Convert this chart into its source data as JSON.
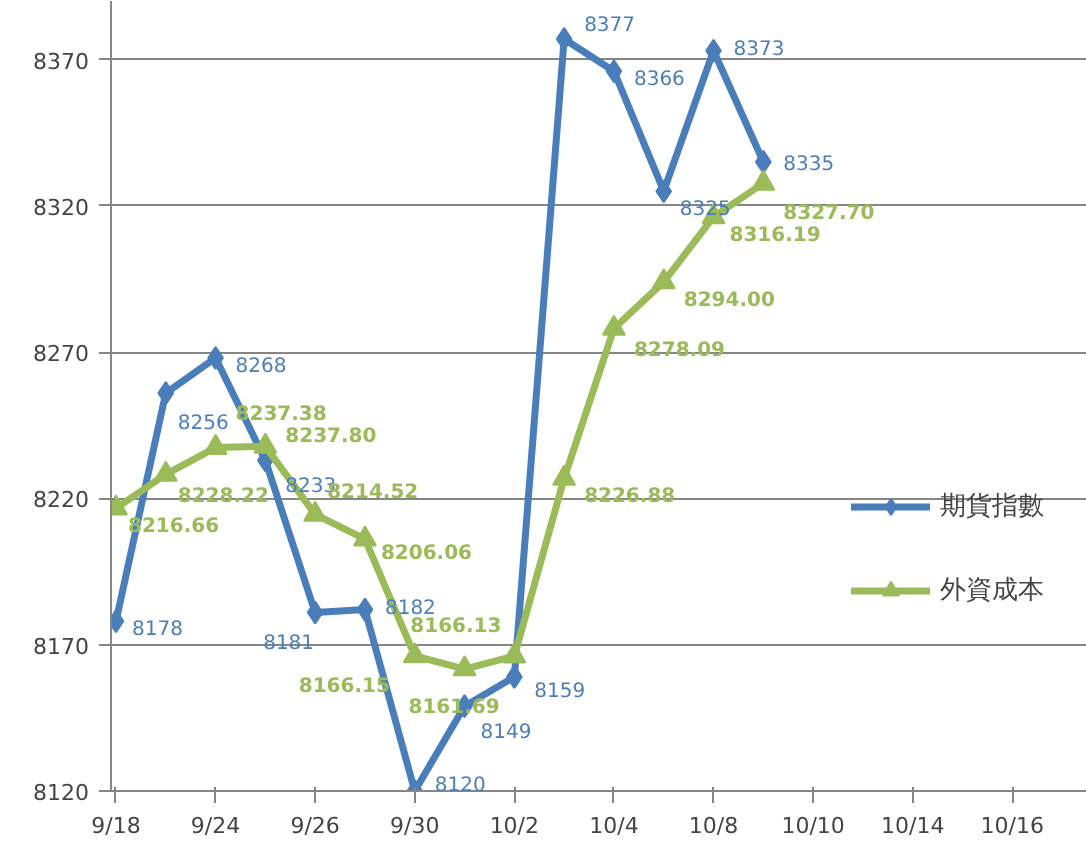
{
  "chart_data": {
    "type": "line",
    "categories": [
      "9/18",
      null,
      "9/24",
      null,
      "9/26",
      null,
      "9/30",
      null,
      "10/2",
      null,
      "10/4",
      null,
      "10/8",
      null,
      "10/10",
      null,
      "10/14",
      null,
      "10/16",
      null
    ],
    "series": [
      {
        "name": "期貨指數",
        "color": "#4a7ebb",
        "marker": "diamond",
        "values": [
          8178,
          8256,
          8268,
          8233,
          8181,
          8182,
          8120,
          8149,
          8159,
          8377,
          8366,
          8325,
          8373,
          8335,
          null,
          null,
          null,
          null,
          null,
          null
        ],
        "value_labels": [
          "8178",
          "8256",
          "8268",
          "8233",
          "8181",
          "8182",
          "8120",
          "8149",
          "8159",
          "8377",
          "8366",
          "8325",
          "8373",
          "8335",
          null,
          null,
          null,
          null,
          null,
          null
        ]
      },
      {
        "name": "外資成本",
        "color": "#9bbb59",
        "marker": "triangle",
        "values": [
          8216.66,
          8228.22,
          8237.38,
          8237.8,
          8214.52,
          8206.06,
          8166.15,
          8161.69,
          8166.13,
          8226.88,
          8278.09,
          8294.0,
          8316.19,
          8327.7,
          null,
          null,
          null,
          null,
          null,
          null
        ],
        "value_labels": [
          "8216.66",
          "8228.22",
          "8237.38",
          "8237.80",
          "8214.52",
          "8206.06",
          "8166.15",
          "8161.69",
          "8166.13",
          "8226.88",
          "8278.09",
          "8294.00",
          "8316.19",
          "8327.70",
          null,
          null,
          null,
          null,
          null,
          null
        ]
      }
    ],
    "ylim": [
      8120,
      8390
    ],
    "yticks": [
      8120,
      8170,
      8220,
      8270,
      8320,
      8370
    ],
    "grid": "y",
    "legend": "right",
    "line_style": "solid"
  }
}
